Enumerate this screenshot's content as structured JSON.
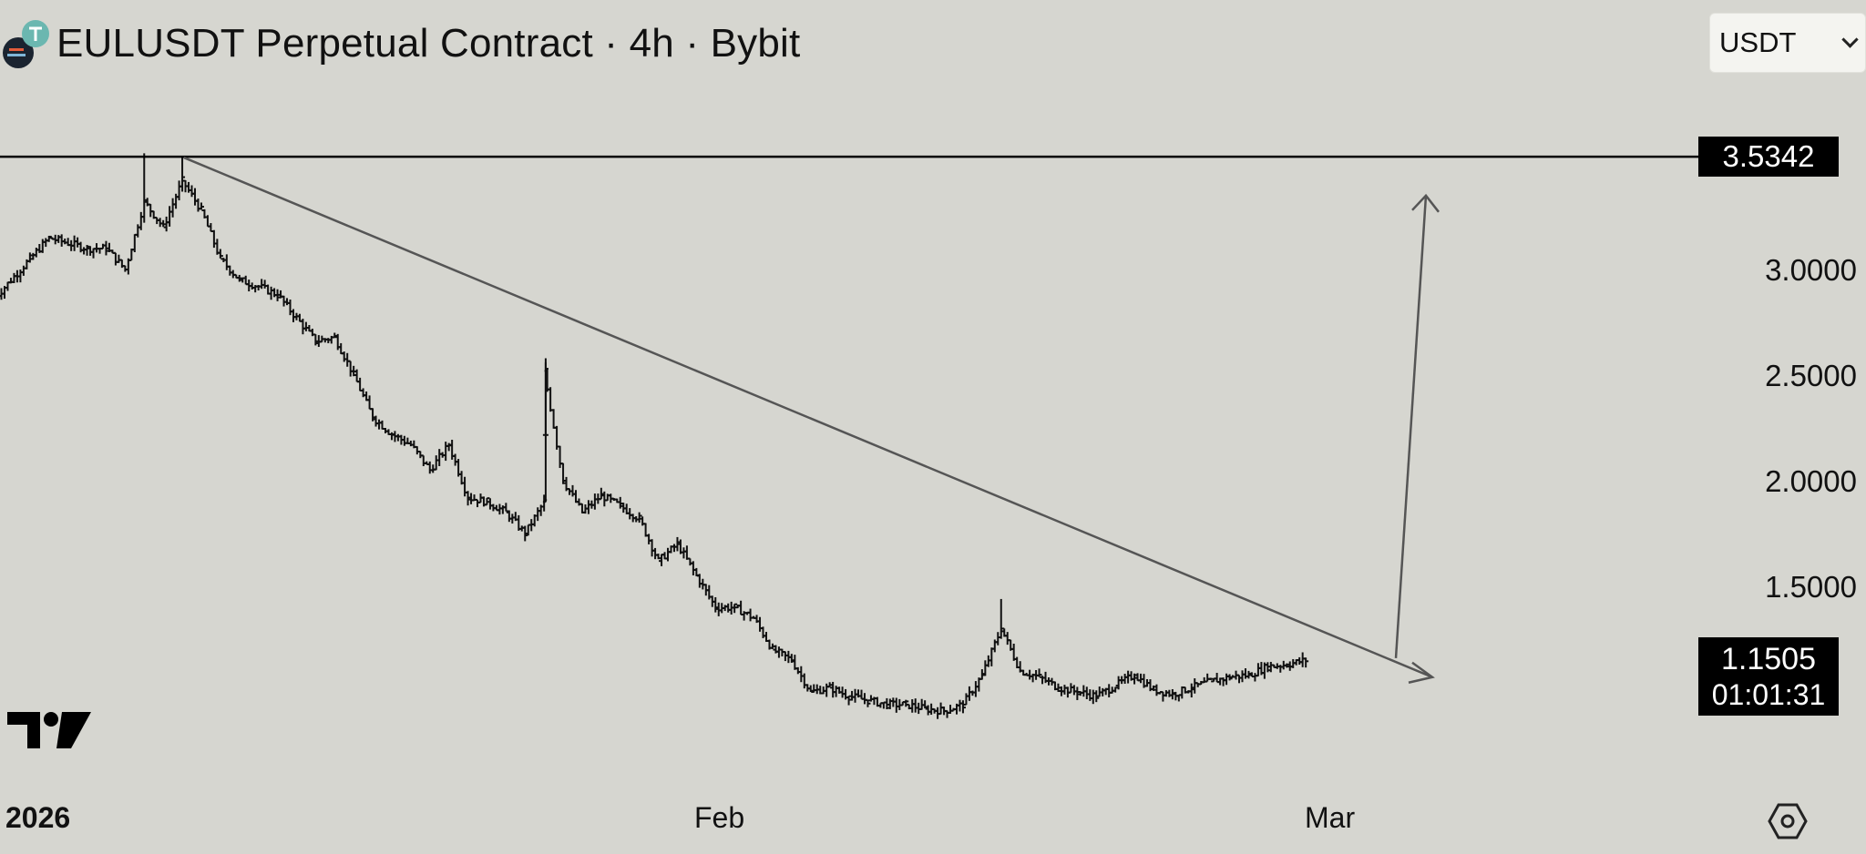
{
  "header": {
    "title": "EULUSDT Perpetual Contract · 4h · Bybit",
    "currency_selector": "USDT",
    "logo_icon": "eul-token-icon"
  },
  "price_axis": {
    "labels": [
      "3.0000",
      "2.5000",
      "2.0000",
      "1.5000"
    ],
    "level_tag": "3.5342",
    "current_price": "1.1505",
    "countdown": "01:01:31"
  },
  "time_axis": {
    "labels": [
      "2026",
      "Feb",
      "Mar"
    ]
  },
  "colors": {
    "background": "#d6d6d0",
    "candle": "#111111",
    "trendline": "#555555",
    "tag_bg": "#000000"
  },
  "icons": [
    "tradingview-logo-icon",
    "settings-icon",
    "chevron-down-icon"
  ],
  "chart_data": {
    "type": "line",
    "style": "ohlc-bars",
    "x_unit": "date",
    "x_tick_dates": [
      "2026-01-01",
      "2026-02-01",
      "2026-03-01"
    ],
    "y_ticks": [
      1.5,
      2.0,
      2.5,
      3.0
    ],
    "ylim": [
      0.9,
      3.7
    ],
    "xlim": [
      "2025-12-24",
      "2026-03-04"
    ],
    "horizontal_level": 3.5342,
    "current_price": 1.1505,
    "grid": false,
    "series": [
      {
        "points": [
          [
            "2025-12-24",
            2.85
          ],
          [
            "2025-12-26",
            3.05
          ],
          [
            "2025-12-27",
            3.15
          ],
          [
            "2025-12-29",
            3.1
          ],
          [
            "2025-12-30",
            3.1
          ],
          [
            "2025-12-31",
            3.0
          ],
          [
            "2026-01-01",
            3.32
          ],
          [
            "2026-01-02",
            3.2
          ],
          [
            "2026-01-03",
            3.42
          ],
          [
            "2026-01-04",
            3.28
          ],
          [
            "2026-01-05",
            3.05
          ],
          [
            "2026-01-06",
            2.95
          ],
          [
            "2026-01-07",
            2.92
          ],
          [
            "2026-01-08",
            2.88
          ],
          [
            "2026-01-10",
            2.66
          ],
          [
            "2026-01-11",
            2.68
          ],
          [
            "2026-01-12",
            2.5
          ],
          [
            "2026-01-13",
            2.3
          ],
          [
            "2026-01-14",
            2.22
          ],
          [
            "2026-01-15",
            2.17
          ],
          [
            "2026-01-16",
            2.05
          ],
          [
            "2026-01-17",
            2.17
          ],
          [
            "2026-01-18",
            1.92
          ],
          [
            "2026-01-19",
            1.9
          ],
          [
            "2026-01-20",
            1.85
          ],
          [
            "2026-01-21",
            1.75
          ],
          [
            "2026-01-22",
            1.9
          ],
          [
            "2026-01-22",
            2.52
          ],
          [
            "2026-01-23",
            2.0
          ],
          [
            "2026-01-24",
            1.85
          ],
          [
            "2026-01-25",
            1.93
          ],
          [
            "2026-01-26",
            1.88
          ],
          [
            "2026-01-27",
            1.82
          ],
          [
            "2026-01-28",
            1.62
          ],
          [
            "2026-01-29",
            1.7
          ],
          [
            "2026-01-30",
            1.55
          ],
          [
            "2026-01-31",
            1.4
          ],
          [
            "2026-02-01",
            1.4
          ],
          [
            "2026-02-02",
            1.35
          ],
          [
            "2026-02-03",
            1.2
          ],
          [
            "2026-02-04",
            1.15
          ],
          [
            "2026-02-05",
            1.0
          ],
          [
            "2026-02-06",
            1.02
          ],
          [
            "2026-02-07",
            0.98
          ],
          [
            "2026-02-08",
            0.96
          ],
          [
            "2026-02-09",
            0.94
          ],
          [
            "2026-02-10",
            0.94
          ],
          [
            "2026-02-11",
            0.92
          ],
          [
            "2026-02-12",
            0.91
          ],
          [
            "2026-02-13",
            0.94
          ],
          [
            "2026-02-14",
            1.08
          ],
          [
            "2026-02-15",
            1.3
          ],
          [
            "2026-02-16",
            1.1
          ],
          [
            "2026-02-17",
            1.07
          ],
          [
            "2026-02-18",
            1.02
          ],
          [
            "2026-02-19",
            1.0
          ],
          [
            "2026-02-20",
            0.98
          ],
          [
            "2026-02-21",
            1.03
          ],
          [
            "2026-02-22",
            1.08
          ],
          [
            "2026-02-23",
            1.01
          ],
          [
            "2026-02-24",
            0.99
          ],
          [
            "2026-02-25",
            1.02
          ],
          [
            "2026-02-26",
            1.05
          ],
          [
            "2026-02-27",
            1.07
          ],
          [
            "2026-02-28",
            1.08
          ],
          [
            "2026-03-01",
            1.12
          ],
          [
            "2026-03-02",
            1.13
          ],
          [
            "2026-03-03",
            1.15
          ]
        ]
      }
    ],
    "annotations": [
      {
        "kind": "trendline",
        "from": [
          "2026-01-03",
          3.53
        ],
        "to": [
          "2026-03-04",
          1.07
        ]
      },
      {
        "kind": "arrow",
        "from": [
          "2026-03-03",
          1.16
        ],
        "to": [
          "2026-03-04",
          3.35
        ]
      }
    ]
  }
}
